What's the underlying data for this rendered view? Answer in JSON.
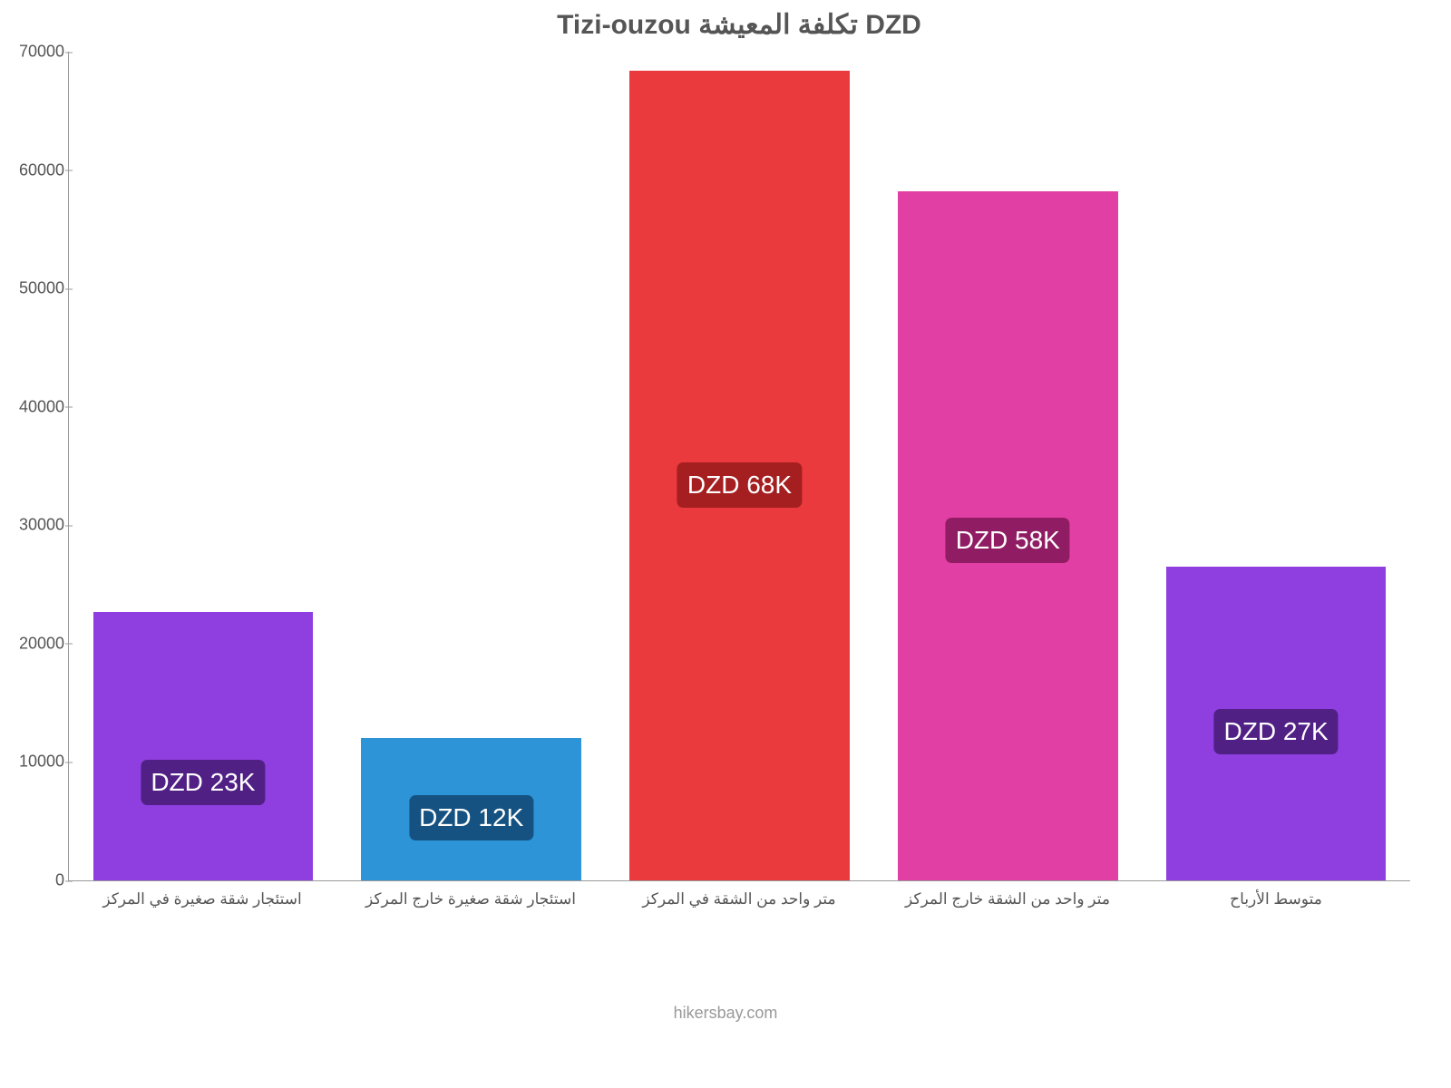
{
  "chart": {
    "type": "bar",
    "title": "Tizi-ouzou تكلفة المعيشة DZD",
    "title_color": "#555555",
    "title_fontsize": 30,
    "background_color": "#ffffff",
    "ylim": [
      0,
      70000
    ],
    "ytick_step": 10000,
    "y_ticks": [
      "0",
      "10000",
      "20000",
      "30000",
      "40000",
      "50000",
      "60000",
      "70000"
    ],
    "axis_color": "#999999",
    "label_fontsize": 17,
    "categories": [
      "استئجار شقة صغيرة في المركز",
      "استئجار شقة صغيرة خارج المركز",
      "متر واحد من الشقة في المركز",
      "متر واحد من الشقة خارج المركز",
      "متوسط الأرباح"
    ],
    "values": [
      22700,
      12000,
      68400,
      58200,
      26500
    ],
    "bar_colors": [
      "#8f3ee0",
      "#2d94d7",
      "#ea3a3d",
      "#e23fa4",
      "#8f3ee0"
    ],
    "data_labels": [
      "DZD 23K",
      "DZD 12K",
      "DZD 68K",
      "DZD 58K",
      "DZD 27K"
    ],
    "data_label_bg": [
      "#512085",
      "#155281",
      "#a51e20",
      "#901d63",
      "#512085"
    ],
    "data_label_fontsize": 28,
    "bar_width": 0.82
  },
  "attribution": "hikersbay.com"
}
